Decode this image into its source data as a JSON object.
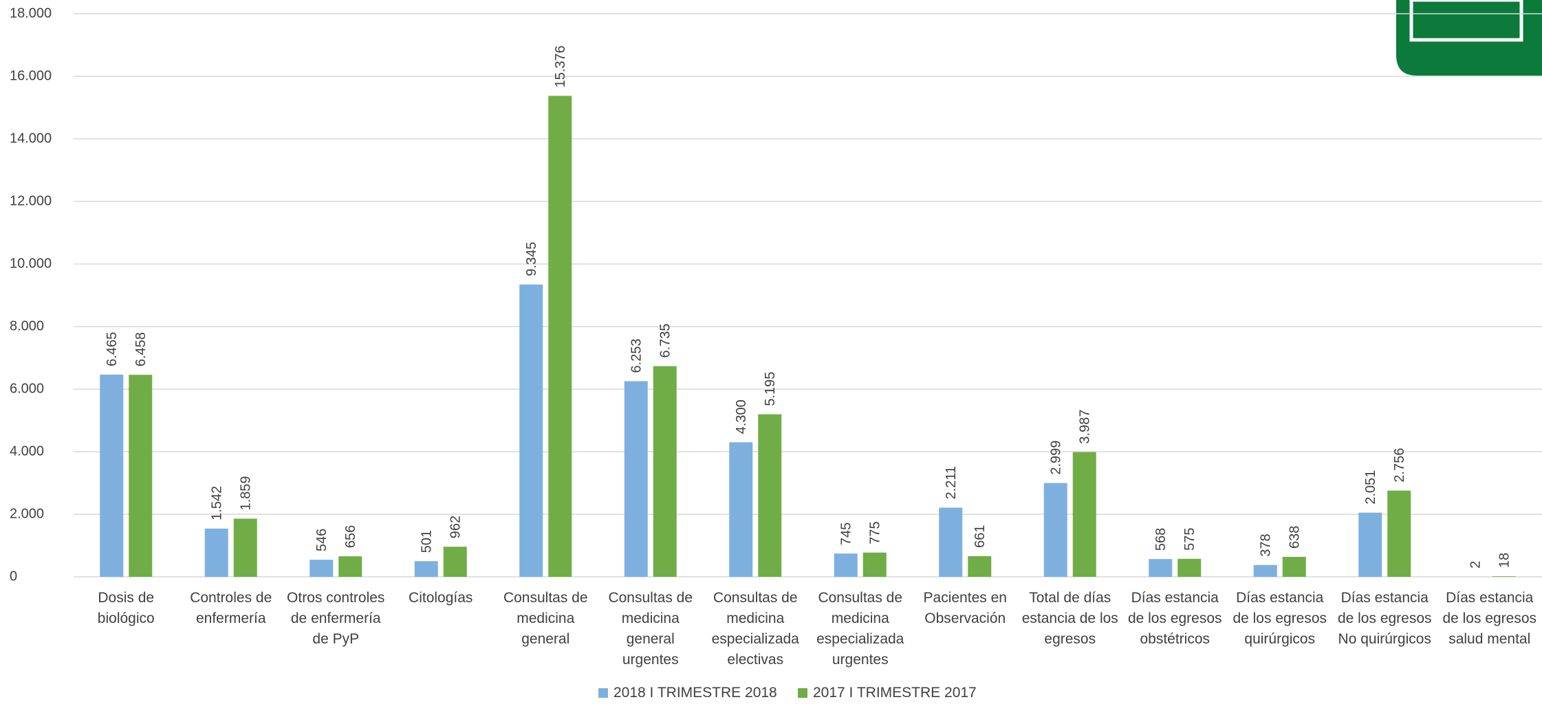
{
  "chart_data": {
    "type": "bar",
    "categories": [
      "Dosis de biológico",
      "Controles de enfermería",
      "Otros controles de enfermería de PyP",
      "Citologías",
      "Consultas de medicina general",
      "Consultas de medicina general urgentes",
      "Consultas de medicina especializada electivas",
      "Consultas de medicina especializada urgentes",
      "Pacientes en Observación",
      "Total de días estancia de los egresos",
      "Días estancia de los egresos obstétricos",
      "Días estancia de los egresos quirúrgicos",
      "Días estancia de los egresos No quirúrgicos",
      "Días estancia de los egresos salud mental"
    ],
    "series": [
      {
        "name": "2018 I TRIMESTRE 2018",
        "color": "#7eb0df",
        "values": [
          6465,
          1542,
          546,
          501,
          9345,
          6253,
          4300,
          745,
          2211,
          2999,
          568,
          378,
          2051,
          2
        ],
        "value_labels": [
          "6.465",
          "1.542",
          "546",
          "501",
          "9.345",
          "6.253",
          "4.300",
          "745",
          "2.211",
          "2.999",
          "568",
          "378",
          "2.051",
          "2"
        ]
      },
      {
        "name": "2017 I TRIMESTRE 2017",
        "color": "#70ad47",
        "values": [
          6458,
          1859,
          656,
          962,
          15376,
          6735,
          5195,
          775,
          661,
          3987,
          575,
          638,
          2756,
          18
        ],
        "value_labels": [
          "6.458",
          "1.859",
          "656",
          "962",
          "15.376",
          "6.735",
          "5.195",
          "775",
          "661",
          "3.987",
          "575",
          "638",
          "2.756",
          "18"
        ]
      }
    ],
    "ylim": [
      0,
      18000
    ],
    "yticks": [
      0,
      {
        "value": 2000,
        "label": "2.000"
      },
      {
        "value": 4000,
        "label": "4.000"
      },
      {
        "value": 6000,
        "label": "6.000"
      },
      {
        "value": 8000,
        "label": "8.000"
      },
      {
        "value": 10000,
        "label": "10.000"
      },
      {
        "value": 12000,
        "label": "12.000"
      },
      {
        "value": 14000,
        "label": "14.000"
      },
      {
        "value": 16000,
        "label": "16.000"
      },
      {
        "value": 18000,
        "label": "18.000"
      }
    ],
    "grid": true,
    "legend": "bottom"
  }
}
